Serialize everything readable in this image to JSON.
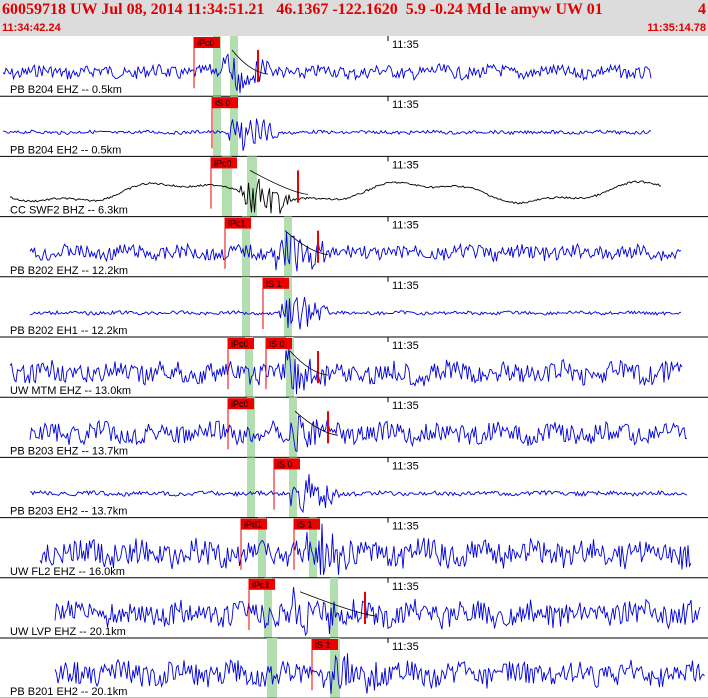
{
  "header": {
    "title": "60059718 UW Jul 08, 2014 11:34:51.21   46.1367 -122.1620  5.9 -0.24 Md le amyw UW 01",
    "right_fragment": "4",
    "start_time": "11:34:42.24",
    "end_time": "11:35:14.78"
  },
  "colors": {
    "header_bg": "#dcdcdc",
    "header_text": "#e00000",
    "trace_blue": "#0000dd",
    "trace_black": "#000000",
    "pick_red": "#ee0000",
    "window_green": "#b3dfb0"
  },
  "time_tick_label": "11:35",
  "traces": [
    {
      "label": "PB B204 EHZ -- 0.5km",
      "color": "blue",
      "picks": [
        "iPc0"
      ],
      "amp": 0.45
    },
    {
      "label": "PB B204 EH2 -- 0.5km",
      "color": "blue",
      "picks": [
        "iS 0"
      ],
      "amp": 0.12
    },
    {
      "label": "CC SWF2 BHZ -- 6.3km",
      "color": "black",
      "picks": [
        "iPc0"
      ],
      "amp": 0.3
    },
    {
      "label": "PB B202 EHZ -- 12.2km",
      "color": "blue",
      "picks": [
        "iPc1"
      ],
      "amp": 0.5
    },
    {
      "label": "PB B202 EH1 -- 12.2km",
      "color": "blue",
      "picks": [
        "iS 1"
      ],
      "amp": 0.12
    },
    {
      "label": "UW MTM EHZ -- 13.0km",
      "color": "blue",
      "picks": [
        "iPc0",
        "iS 0"
      ],
      "amp": 0.75
    },
    {
      "label": "PB B203 EHZ -- 13.7km",
      "color": "blue",
      "picks": [
        "iPc0"
      ],
      "amp": 0.7
    },
    {
      "label": "PB B203 EH2 -- 13.7km",
      "color": "blue",
      "picks": [
        "iS 0"
      ],
      "amp": 0.15
    },
    {
      "label": "UW FL2 EHZ -- 16.0km",
      "color": "blue",
      "picks": [
        "iPd1",
        "iS 1"
      ],
      "amp": 0.9
    },
    {
      "label": "UW LVP EHZ -- 20.1km",
      "color": "blue",
      "picks": [
        "iPc1"
      ],
      "amp": 0.85
    },
    {
      "label": "PB B201 EH2 -- 20.1km",
      "color": "blue",
      "picks": [
        "iS 1"
      ],
      "amp": 0.8
    }
  ]
}
